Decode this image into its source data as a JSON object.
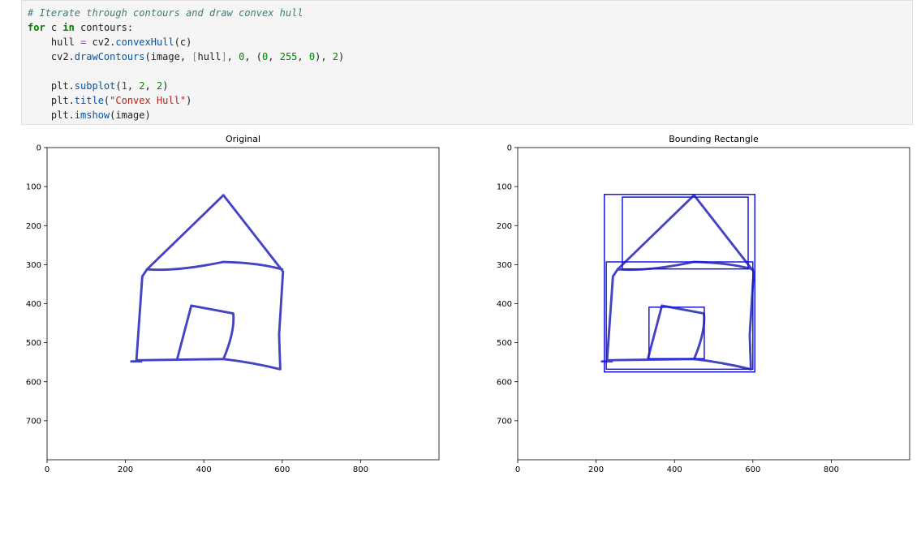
{
  "code": {
    "lines": [
      [
        {
          "text": "# Iterate through contours and draw convex hull",
          "color": "#3d7b7b",
          "style": "italic"
        }
      ],
      [
        {
          "text": "for",
          "color": "#008000",
          "weight": "bold"
        },
        {
          "text": " c ",
          "color": "#212121"
        },
        {
          "text": "in",
          "color": "#008000",
          "weight": "bold"
        },
        {
          "text": " contours:",
          "color": "#212121"
        }
      ],
      [
        {
          "text": "    hull ",
          "color": "#212121"
        },
        {
          "text": "=",
          "color": "#aa22ff"
        },
        {
          "text": " cv2.",
          "color": "#212121"
        },
        {
          "text": "convexHull",
          "color": "#0055aa"
        },
        {
          "text": "(c)",
          "color": "#212121"
        }
      ],
      [
        {
          "text": "    cv2.",
          "color": "#212121"
        },
        {
          "text": "drawContours",
          "color": "#0055aa"
        },
        {
          "text": "(image, ",
          "color": "#212121"
        },
        {
          "text": "[",
          "color": "#888888"
        },
        {
          "text": "hull",
          "color": "#212121"
        },
        {
          "text": "]",
          "color": "#888888"
        },
        {
          "text": ", ",
          "color": "#212121"
        },
        {
          "text": "0",
          "color": "#008800"
        },
        {
          "text": ", (",
          "color": "#212121"
        },
        {
          "text": "0",
          "color": "#008800"
        },
        {
          "text": ", ",
          "color": "#212121"
        },
        {
          "text": "255",
          "color": "#008800"
        },
        {
          "text": ", ",
          "color": "#212121"
        },
        {
          "text": "0",
          "color": "#008800"
        },
        {
          "text": "), ",
          "color": "#212121"
        },
        {
          "text": "2",
          "color": "#008800"
        },
        {
          "text": ")",
          "color": "#212121"
        }
      ],
      [],
      [
        {
          "text": "    plt.",
          "color": "#212121"
        },
        {
          "text": "subplot",
          "color": "#0055aa"
        },
        {
          "text": "(",
          "color": "#212121"
        },
        {
          "text": "1",
          "color": "#008800"
        },
        {
          "text": ", ",
          "color": "#212121"
        },
        {
          "text": "2",
          "color": "#008800"
        },
        {
          "text": ", ",
          "color": "#212121"
        },
        {
          "text": "2",
          "color": "#008800"
        },
        {
          "text": ")",
          "color": "#212121"
        }
      ],
      [
        {
          "text": "    plt.",
          "color": "#212121"
        },
        {
          "text": "title",
          "color": "#0055aa"
        },
        {
          "text": "(",
          "color": "#212121"
        },
        {
          "text": "\"Convex Hull\"",
          "color": "#ba2121"
        },
        {
          "text": ")",
          "color": "#212121"
        }
      ],
      [
        {
          "text": "    plt.",
          "color": "#212121"
        },
        {
          "text": "imshow",
          "color": "#0055aa"
        },
        {
          "text": "(image)",
          "color": "#212121"
        }
      ]
    ]
  },
  "plots": [
    {
      "title": "Original",
      "xlim": [
        0,
        1000
      ],
      "ylim": [
        800,
        0
      ],
      "xticks": [
        0,
        200,
        400,
        600,
        800
      ],
      "yticks": [
        0,
        100,
        200,
        300,
        400,
        500,
        600,
        700
      ]
    },
    {
      "title": "Bounding Rectangle",
      "xlim": [
        0,
        1000
      ],
      "ylim": [
        800,
        0
      ],
      "xticks": [
        0,
        200,
        400,
        600,
        800
      ],
      "yticks": [
        0,
        100,
        200,
        300,
        400,
        500,
        600,
        700
      ]
    }
  ]
}
